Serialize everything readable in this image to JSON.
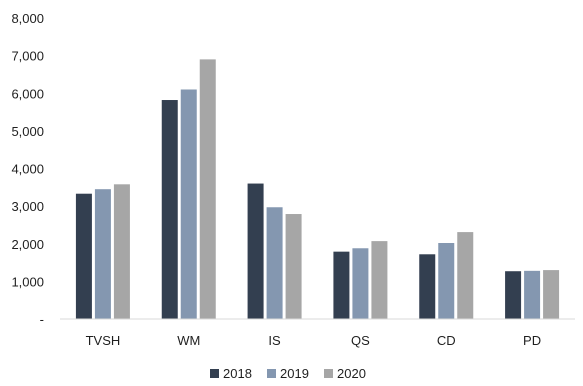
{
  "chart_data": {
    "type": "bar",
    "categories": [
      "TVSH",
      "WM",
      "IS",
      "QS",
      "CD",
      "PD"
    ],
    "series": [
      {
        "name": "2018",
        "values": [
          3330,
          5820,
          3600,
          1790,
          1720,
          1270
        ],
        "color": "#333f50"
      },
      {
        "name": "2019",
        "values": [
          3450,
          6100,
          2970,
          1880,
          2020,
          1280
        ],
        "color": "#8497b0"
      },
      {
        "name": "2020",
        "values": [
          3580,
          6900,
          2790,
          2070,
          2310,
          1300
        ],
        "color": "#a6a6a6"
      }
    ],
    "y_ticks": [
      "-",
      "1,000",
      "2,000",
      "3,000",
      "4,000",
      "5,000",
      "6,000",
      "7,000",
      "8,000"
    ],
    "ylim": [
      0,
      8000
    ],
    "legend_position": "bottom",
    "axis_color": "#d9d9d9",
    "grid": false
  }
}
